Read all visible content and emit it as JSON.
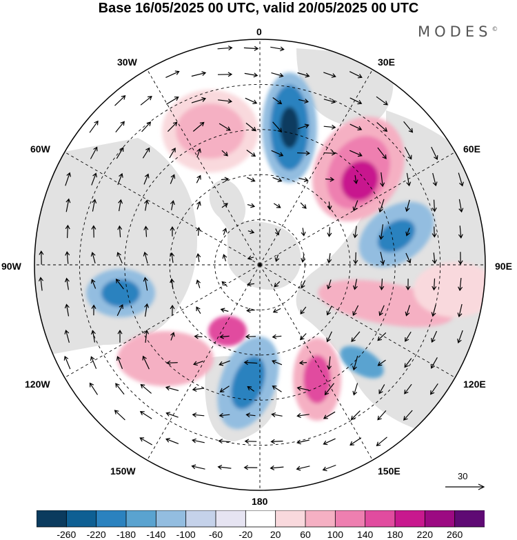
{
  "title": "Base 16/05/2025 00 UTC, valid 20/05/2025 00 UTC",
  "logo": "MODES",
  "logo_mark": "©",
  "projection": "polar stereographic, North Pole centered",
  "longitude_labels": {
    "lon_0": "0",
    "lon_30e": "30E",
    "lon_60e": "60E",
    "lon_90e": "90E",
    "lon_120e": "120E",
    "lon_150e": "150E",
    "lon_180": "180",
    "lon_150w": "150W",
    "lon_120w": "120W",
    "lon_90w": "90W",
    "lon_60w": "60W",
    "lon_30w": "30W"
  },
  "reference_vector": {
    "label": "30"
  },
  "colorbar": {
    "ticks": [
      "-260",
      "-220",
      "-180",
      "-140",
      "-100",
      "-60",
      "-20",
      "20",
      "60",
      "100",
      "140",
      "180",
      "220",
      "260"
    ],
    "colors": [
      "#0b3b5e",
      "#0e5f93",
      "#2b82bf",
      "#5aa3d0",
      "#93bde0",
      "#c5d2ea",
      "#e6e4f2",
      "#ffffff",
      "#f9d9dd",
      "#f5b0c3",
      "#ee7fb0",
      "#e14c9f",
      "#c8198e",
      "#9c0a82",
      "#5f0a74"
    ]
  },
  "colors": {
    "land": "#e2e2e2",
    "grid": "#000000",
    "coast": "#4a4a4a"
  }
}
